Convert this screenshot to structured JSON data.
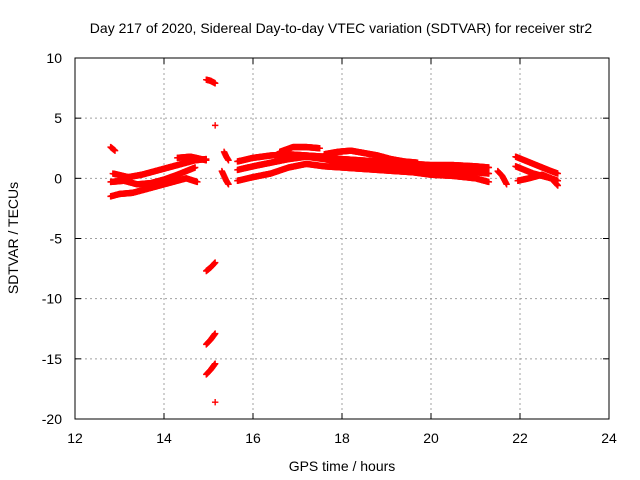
{
  "chart_data": {
    "type": "scatter",
    "title": "Day 217 of 2020, Sidereal Day-to-day VTEC variation (SDTVAR) for receiver str2",
    "xlabel": "GPS time / hours",
    "ylabel": "SDTVAR / TECUs",
    "xlim": [
      12,
      24
    ],
    "ylim": [
      -20,
      10
    ],
    "xticks": [
      12,
      14,
      16,
      18,
      20,
      22,
      24
    ],
    "xtick_labels": [
      "12",
      "14",
      "16",
      "18",
      "20",
      "22",
      "24"
    ],
    "yticks": [
      -20,
      -15,
      -10,
      -5,
      0,
      5,
      10
    ],
    "ytick_labels": [
      "-20",
      "-15",
      "-10",
      "-5",
      "0",
      "5",
      "10"
    ],
    "grid": true,
    "marker": "+",
    "color": "#ff0000",
    "series": [
      {
        "name": "SDTVAR",
        "segments": [
          {
            "x": [
              12.8,
              12.9
            ],
            "y": [
              2.6,
              2.3
            ]
          },
          {
            "x": [
              12.8,
              13.0,
              13.3,
              13.6,
              13.9,
              14.2,
              14.5,
              14.75
            ],
            "y": [
              -1.5,
              -1.3,
              -1.2,
              -0.9,
              -0.6,
              -0.3,
              0.0,
              -0.3
            ]
          },
          {
            "x": [
              12.8,
              13.1,
              13.4,
              13.7,
              14.0,
              14.3,
              14.5,
              14.7
            ],
            "y": [
              -0.3,
              -0.2,
              -0.5,
              -0.4,
              -0.1,
              0.3,
              0.6,
              0.9
            ]
          },
          {
            "x": [
              12.85,
              13.2,
              13.5,
              13.8,
              14.1,
              14.4,
              14.7,
              14.95
            ],
            "y": [
              0.4,
              0.1,
              0.3,
              0.6,
              0.9,
              1.2,
              1.5,
              1.6
            ]
          },
          {
            "x": [
              14.3,
              14.6,
              14.95
            ],
            "y": [
              1.7,
              1.8,
              1.5
            ]
          },
          {
            "x": [
              14.95,
              15.05,
              15.15
            ],
            "y": [
              8.2,
              8.1,
              7.9
            ]
          },
          {
            "x": [
              15.15
            ],
            "y": [
              4.4
            ]
          },
          {
            "x": [
              14.95,
              15.05,
              15.15
            ],
            "y": [
              -7.7,
              -7.4,
              -7.0
            ]
          },
          {
            "x": [
              14.95,
              15.05,
              15.15
            ],
            "y": [
              -13.8,
              -13.4,
              -12.9
            ]
          },
          {
            "x": [
              14.95,
              15.05,
              15.15
            ],
            "y": [
              -16.3,
              -15.9,
              -15.4
            ]
          },
          {
            "x": [
              15.15
            ],
            "y": [
              -18.6
            ]
          },
          {
            "x": [
              15.35,
              15.4,
              15.45
            ],
            "y": [
              2.2,
              1.8,
              1.5
            ]
          },
          {
            "x": [
              15.3,
              15.35,
              15.4,
              15.45
            ],
            "y": [
              0.6,
              0.2,
              -0.2,
              -0.5
            ]
          },
          {
            "x": [
              15.65,
              16.0,
              16.4,
              16.8,
              17.2,
              17.6,
              18.0,
              18.4,
              18.8,
              19.2,
              19.6,
              20.0,
              20.5,
              21.0,
              21.3
            ],
            "y": [
              1.4,
              1.7,
              1.9,
              2.0,
              1.9,
              1.8,
              1.6,
              1.5,
              1.4,
              1.3,
              1.2,
              1.1,
              1.1,
              1.0,
              0.9
            ]
          },
          {
            "x": [
              15.65,
              16.0,
              16.4,
              16.8,
              17.2,
              17.6,
              18.0,
              18.4,
              18.8,
              19.2,
              19.6,
              20.0,
              20.5,
              21.0,
              21.3
            ],
            "y": [
              0.7,
              1.0,
              1.3,
              1.6,
              1.8,
              1.6,
              1.3,
              1.1,
              1.0,
              0.9,
              0.8,
              0.7,
              0.6,
              0.5,
              0.4
            ]
          },
          {
            "x": [
              15.65,
              16.0,
              16.4,
              16.8,
              17.2,
              17.6,
              18.0,
              18.4,
              18.8,
              19.2,
              19.6,
              20.0,
              20.5,
              21.0,
              21.3
            ],
            "y": [
              -0.2,
              0.1,
              0.4,
              0.9,
              1.2,
              1.0,
              0.9,
              0.8,
              0.7,
              0.6,
              0.5,
              0.3,
              0.2,
              0.0,
              -0.3
            ]
          },
          {
            "x": [
              16.6,
              16.9,
              17.2,
              17.5
            ],
            "y": [
              2.2,
              2.6,
              2.6,
              2.5
            ]
          },
          {
            "x": [
              17.6,
              17.9,
              18.2,
              18.5,
              18.8,
              19.1,
              19.4,
              19.7
            ],
            "y": [
              2.0,
              2.2,
              2.3,
              2.1,
              1.9,
              1.6,
              1.4,
              1.3
            ]
          },
          {
            "x": [
              21.5,
              21.6,
              21.7
            ],
            "y": [
              0.6,
              0.2,
              -0.5
            ]
          },
          {
            "x": [
              21.9,
              22.1,
              22.3,
              22.5,
              22.7,
              22.85
            ],
            "y": [
              1.8,
              1.5,
              1.2,
              0.9,
              0.6,
              0.4
            ]
          },
          {
            "x": [
              21.9,
              22.1,
              22.3,
              22.5,
              22.7,
              22.85
            ],
            "y": [
              1.0,
              0.7,
              0.4,
              0.2,
              0.0,
              -0.2
            ]
          },
          {
            "x": [
              21.95,
              22.2,
              22.5,
              22.7,
              22.85
            ],
            "y": [
              -0.2,
              0.0,
              0.3,
              0.0,
              -0.6
            ]
          }
        ]
      }
    ]
  }
}
